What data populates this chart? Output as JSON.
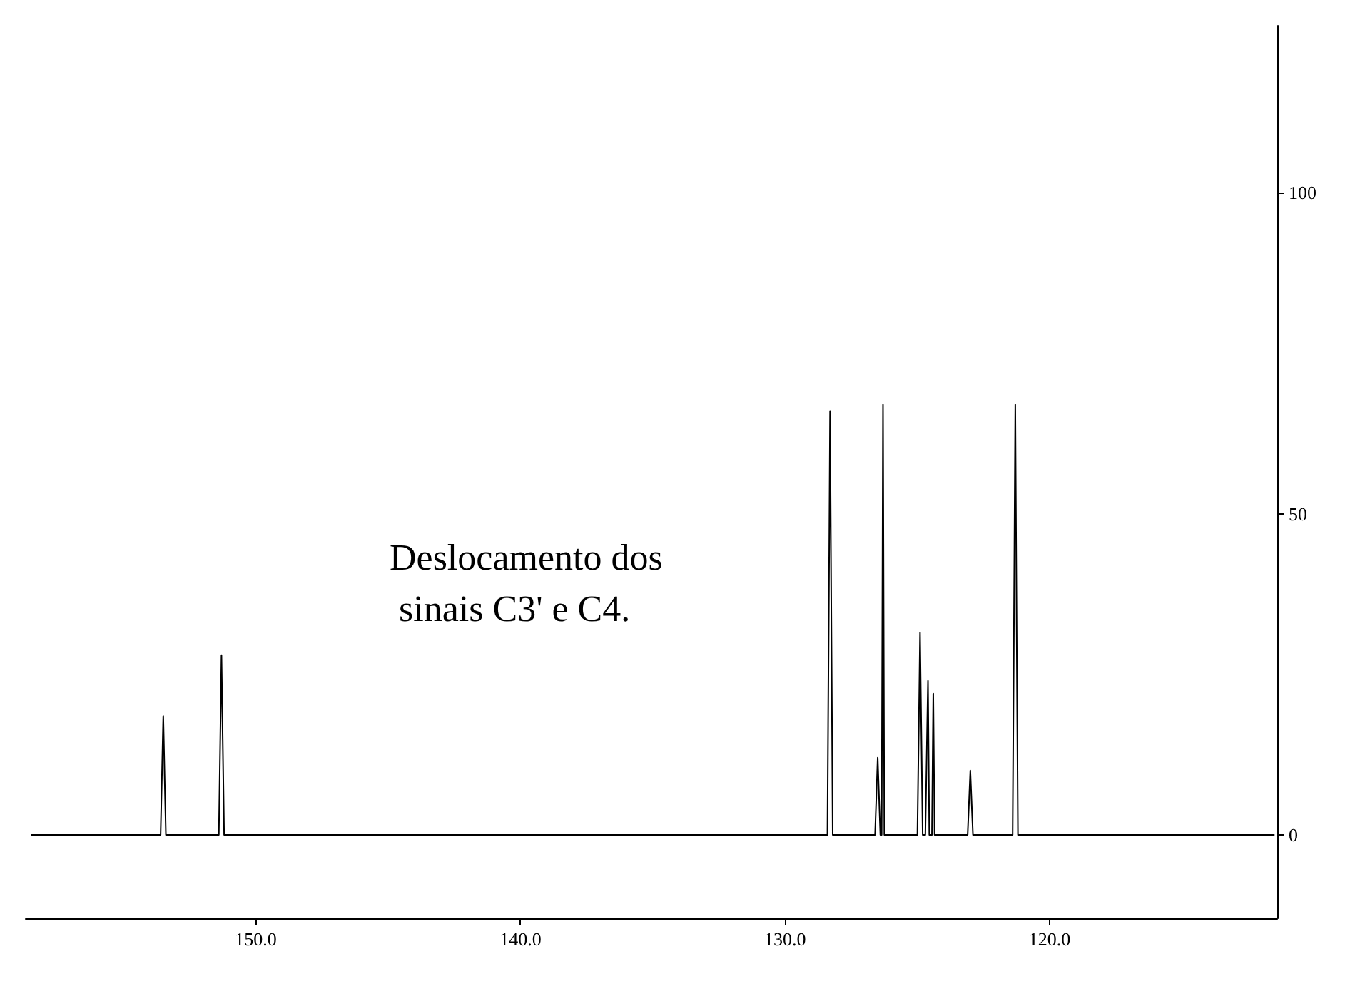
{
  "chart_data": {
    "type": "line",
    "x": [
      158.5,
      153.6,
      153.5,
      153.4,
      151.4,
      151.3,
      151.2,
      128.4,
      128.3,
      128.2,
      126.6,
      126.5,
      126.4,
      126.35,
      126.3,
      126.25,
      125.0,
      124.9,
      124.8,
      124.7,
      124.6,
      124.55,
      124.45,
      124.4,
      124.35,
      123.1,
      123.0,
      122.9,
      121.4,
      121.3,
      121.2,
      111.5
    ],
    "series": [
      {
        "color": "#000000",
        "values": [
          0,
          0,
          18.5,
          0,
          0,
          28,
          0,
          0,
          66,
          0,
          0,
          12,
          0,
          0,
          67,
          0,
          0,
          31.5,
          0,
          0,
          24,
          0,
          0,
          22,
          0,
          0,
          10,
          0,
          0,
          67,
          0,
          0
        ]
      }
    ],
    "xlim": [
      158.7,
      111.4
    ],
    "xticks": [
      {
        "value": 150,
        "label": "150.0"
      },
      {
        "value": 140,
        "label": "140.0"
      },
      {
        "value": 130,
        "label": "130.0"
      },
      {
        "value": 120,
        "label": "120.0"
      }
    ],
    "ylim": [
      -13,
      126
    ],
    "yticks": [
      0,
      50,
      100
    ],
    "annotations": [
      "Deslocamento dos sinais C3' e C4."
    ],
    "grid": false,
    "marker": "none",
    "line_style": "solid"
  }
}
